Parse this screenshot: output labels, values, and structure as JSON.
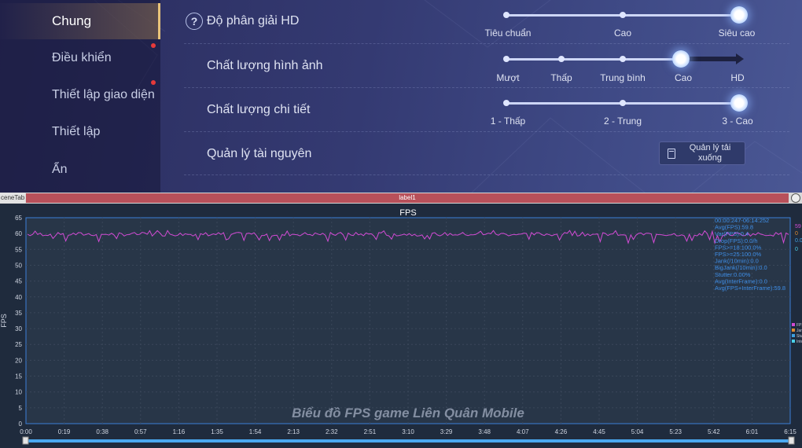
{
  "sidebar": {
    "items": [
      {
        "label": "Chung",
        "active": true,
        "dot": false
      },
      {
        "label": "Điều khiển",
        "active": false,
        "dot": true
      },
      {
        "label": "Thiết lập giao diện",
        "active": false,
        "dot": true
      },
      {
        "label": "Thiết lập",
        "active": false,
        "dot": false
      },
      {
        "label": "Ẩn",
        "active": false,
        "dot": false
      }
    ]
  },
  "settings": {
    "resolution": {
      "label": "Độ phân giải HD",
      "options": [
        "Tiêu chuẩn",
        "Cao",
        "Siêu cao"
      ],
      "selected": "Siêu cao"
    },
    "image_quality": {
      "label": "Chất lượng hình ảnh",
      "options": [
        "Mượt",
        "Thấp",
        "Trung bình",
        "Cao",
        "HD"
      ],
      "selected": "Cao"
    },
    "detail_quality": {
      "label": "Chất lượng chi tiết",
      "options": [
        "1 - Thấp",
        "2 - Trung",
        "3 - Cao"
      ],
      "selected": "3 - Cao"
    },
    "resources": {
      "label": "Quản lý tài nguyên",
      "button_line1": "Quản lý tải",
      "button_line2": "xuống"
    }
  },
  "tabbar": {
    "left_tab": "ceneTab",
    "label": "label1"
  },
  "chart_data": {
    "type": "line",
    "title": "FPS",
    "ylabel": "FPS",
    "xlabel": "",
    "ylim": [
      0,
      65
    ],
    "yticks": [
      0,
      5,
      10,
      15,
      20,
      25,
      30,
      35,
      40,
      45,
      50,
      55,
      60,
      65
    ],
    "xlim_seconds": [
      0,
      375
    ],
    "xticks": [
      "0:00",
      "0:19",
      "0:38",
      "0:57",
      "1:16",
      "1:35",
      "1:54",
      "2:13",
      "2:32",
      "2:51",
      "3:10",
      "3:29",
      "3:48",
      "4:07",
      "4:26",
      "4:45",
      "5:04",
      "5:23",
      "5:42",
      "6:01",
      "6:15"
    ],
    "watermark": "Biểu đồ FPS game Liên Quân Mobile",
    "series": [
      {
        "name": "FPS",
        "color": "#d24bd4",
        "baseline": 59.8,
        "min": 57,
        "max": 61
      }
    ],
    "right_values": [
      {
        "text": "59",
        "color": "#d24bd4"
      },
      {
        "text": "0",
        "color": "#e08a2e"
      },
      {
        "text": "0.0",
        "color": "#3ea0e0"
      },
      {
        "text": "0",
        "color": "#4ad0e8"
      }
    ],
    "stats": [
      "00:00:247-06:14:252",
      "Avg(FPS):59.8",
      "Var(FPS):0.4",
      "Drop(FPS):0.0/h",
      "FPS>=18:100.0%",
      "FPS>=25:100.0%",
      "Jank(/10min):0.0",
      "BigJank(/10min):0.0",
      "Stutter:0.00%",
      "Avg(InterFrame):0.0",
      "Avg(FPS+InterFrame):59.8"
    ],
    "legend": [
      {
        "label": "FPS",
        "color": "#d24bd4"
      },
      {
        "label": "Jank",
        "color": "#e08a2e"
      },
      {
        "label": "Stutter",
        "color": "#3ea0e0"
      },
      {
        "label": "InterFrame",
        "color": "#4ad0e8"
      }
    ],
    "grid": true
  }
}
